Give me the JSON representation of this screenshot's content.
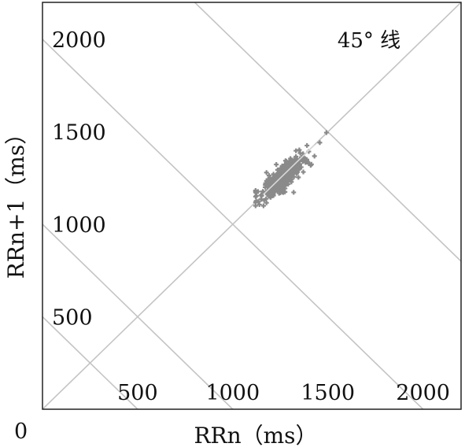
{
  "chart_data": {
    "type": "scatter",
    "title": "",
    "xlabel": "RRn（ms）",
    "ylabel": "RRn+1（ms）",
    "xlim": [
      0,
      2200
    ],
    "ylim": [
      0,
      2200
    ],
    "origin_label": "0",
    "x_ticks": [
      {
        "value": 500,
        "label": "500"
      },
      {
        "value": 1000,
        "label": "1000"
      },
      {
        "value": 1500,
        "label": "1500"
      },
      {
        "value": 2000,
        "label": "2000"
      }
    ],
    "y_ticks": [
      {
        "value": 500,
        "label": "500"
      },
      {
        "value": 1000,
        "label": "1000"
      },
      {
        "value": 1500,
        "label": "1500"
      },
      {
        "value": 2000,
        "label": "2000"
      }
    ],
    "annotation": {
      "text": "45° 线",
      "x": 1550,
      "y": 2000
    },
    "reference_lines": [
      {
        "type": "identity",
        "from": [
          0,
          0
        ],
        "to": [
          2200,
          2200
        ]
      },
      {
        "type": "anti-diagonal",
        "sum": 500
      },
      {
        "type": "anti-diagonal",
        "sum": 1000
      },
      {
        "type": "anti-diagonal",
        "sum": 2000
      },
      {
        "type": "anti-diagonal",
        "sum": 3000
      }
    ],
    "cluster": {
      "center": [
        1265,
        1255
      ],
      "x_range": [
        1120,
        1510
      ],
      "y_range": [
        1100,
        1500
      ],
      "point_count": 420
    },
    "colors": {
      "points": "#8a8a8a",
      "reference_lines": "#c4c4c4",
      "frame": "#222222"
    }
  }
}
